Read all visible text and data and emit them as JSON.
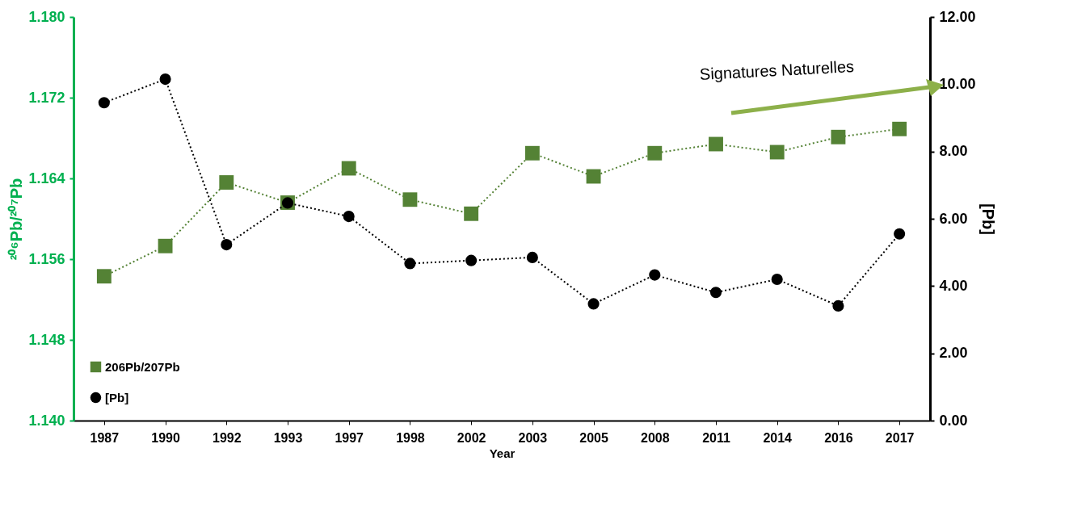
{
  "chart_data": {
    "type": "line",
    "xlabel": "Year",
    "ylabel": "²⁰⁶Pb/²⁰⁷Pb",
    "y2label": "[Pb]",
    "categories": [
      "1987",
      "1990",
      "1992",
      "1993",
      "1997",
      "1998",
      "2002",
      "2003",
      "2005",
      "2008",
      "2011",
      "2014",
      "2016",
      "2017"
    ],
    "series": [
      {
        "name": "206Pb/207Pb",
        "color": "#548235",
        "marker": "square",
        "values": [
          1.1543,
          1.1573,
          1.1636,
          1.1616,
          1.165,
          1.1619,
          1.1605,
          1.1665,
          1.1642,
          1.1665,
          1.1674,
          1.1666,
          1.1681,
          1.1689
        ]
      },
      {
        "name": "[Pb]",
        "color": "#000000",
        "marker": "circle",
        "axis": "y2",
        "values": [
          9.45,
          10.15,
          5.23,
          6.47,
          6.07,
          4.67,
          4.76,
          4.85,
          3.47,
          4.33,
          3.81,
          4.2,
          3.41,
          5.55
        ]
      }
    ],
    "ylim": [
      1.14,
      1.18
    ],
    "yticks": [
      {
        "value": 1.14,
        "label": "1.140"
      },
      1.148,
      1.156,
      1.164,
      1.172,
      {
        "value": 1.18,
        "label": "1.180"
      }
    ],
    "y2lim": [
      0,
      12
    ],
    "y2ticks": [
      {
        "value": 0,
        "label": "0.00"
      },
      {
        "value": 2,
        "label": "2.00"
      },
      {
        "value": 4,
        "label": "4.00"
      },
      {
        "value": 6,
        "label": "6.00"
      },
      {
        "value": 8,
        "label": "8.00"
      },
      {
        "value": 10,
        "label": "10.00"
      },
      {
        "value": 12,
        "label": "12.00"
      }
    ],
    "line_style": "dotted",
    "legend": "bottom left",
    "grid": false,
    "annotations": [
      "Signatures Naturelles"
    ]
  }
}
